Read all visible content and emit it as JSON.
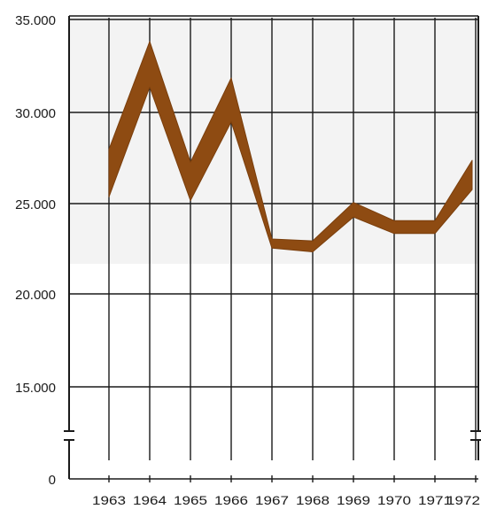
{
  "chart_data": {
    "type": "area",
    "title": "",
    "xlabel": "",
    "ylabel": "",
    "categories": [
      "1963",
      "1964",
      "1965",
      "1966",
      "1967",
      "1968",
      "1969",
      "1970",
      "1971",
      "1972"
    ],
    "series": [
      {
        "upper": [
          27900,
          33800,
          27200,
          31800,
          23000,
          22900,
          25000,
          24000,
          24000,
          27300
        ],
        "lower": [
          25300,
          31300,
          25100,
          29400,
          22500,
          22300,
          24200,
          23300,
          23300,
          25700
        ]
      }
    ],
    "y_ticks": [
      "35.000",
      "30.000",
      "25.000",
      "20.000",
      "15.000",
      "0"
    ],
    "y_tick_values": [
      35000,
      30000,
      25000,
      20000,
      15000,
      0
    ],
    "axis_break": true,
    "grid": true,
    "colors": {
      "band": "#8e4b12",
      "band_edge": "#7a3e0c",
      "grid": "#1a1a1a",
      "panel_shade": "#f3f3f3"
    }
  }
}
